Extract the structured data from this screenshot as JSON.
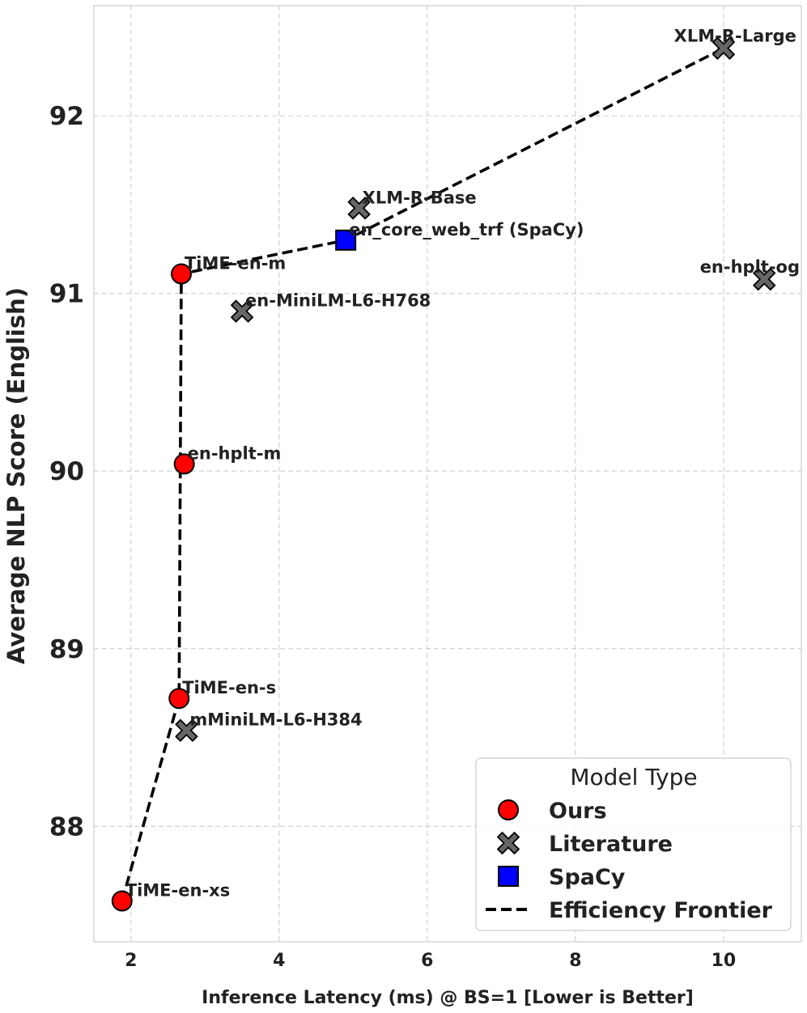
{
  "chart_data": {
    "type": "scatter",
    "xlabel": "Inference Latency (ms) @ BS=1 [Lower is Better]",
    "ylabel": "Average NLP Score (English)",
    "xlim": [
      1.5,
      11.05
    ],
    "ylim": [
      87.35,
      92.62
    ],
    "xticks": [
      2,
      4,
      6,
      8,
      10
    ],
    "yticks": [
      88,
      89,
      90,
      91,
      92
    ],
    "grid": true,
    "legend": {
      "title": "Model Type",
      "position": "lower-right",
      "entries": [
        {
          "label": "Ours",
          "marker": "circle",
          "color": "#ff0000"
        },
        {
          "label": "Literature",
          "marker": "x",
          "color": "#666666"
        },
        {
          "label": "SpaCy",
          "marker": "square",
          "color": "#0000ff"
        },
        {
          "label": "Efficiency Frontier",
          "marker": "dashed-line",
          "color": "#000000"
        }
      ]
    },
    "series": [
      {
        "name": "Ours",
        "marker": "circle",
        "color": "#ff0000",
        "points": [
          {
            "label": "TiME-en-xs",
            "x": 1.88,
            "y": 87.58
          },
          {
            "label": "TiME-en-s",
            "x": 2.65,
            "y": 88.72
          },
          {
            "label": "en-hplt-m",
            "x": 2.72,
            "y": 90.04
          },
          {
            "label": "TiME-en-m",
            "x": 2.68,
            "y": 91.11
          }
        ]
      },
      {
        "name": "Literature",
        "marker": "x",
        "color": "#666666",
        "points": [
          {
            "label": "mMiniLM-L6-H384",
            "x": 2.75,
            "y": 88.54
          },
          {
            "label": "en-MiniLM-L6-H768",
            "x": 3.5,
            "y": 90.9
          },
          {
            "label": "XLM-R-Base",
            "x": 5.08,
            "y": 91.48
          },
          {
            "label": "XLM-R-Large",
            "x": 10.0,
            "y": 92.38
          },
          {
            "label": "en-hplt-og",
            "x": 10.55,
            "y": 91.08
          }
        ]
      },
      {
        "name": "SpaCy",
        "marker": "square",
        "color": "#0000ff",
        "points": [
          {
            "label": "en_core_web_trf (SpaCy)",
            "x": 4.9,
            "y": 91.3
          }
        ]
      },
      {
        "name": "Efficiency Frontier",
        "marker": "dashed-line",
        "color": "#000000",
        "points": [
          {
            "x": 1.88,
            "y": 87.58
          },
          {
            "x": 2.65,
            "y": 88.72
          },
          {
            "x": 2.68,
            "y": 91.11
          },
          {
            "x": 4.9,
            "y": 91.3
          },
          {
            "x": 10.0,
            "y": 92.38
          }
        ]
      }
    ]
  }
}
